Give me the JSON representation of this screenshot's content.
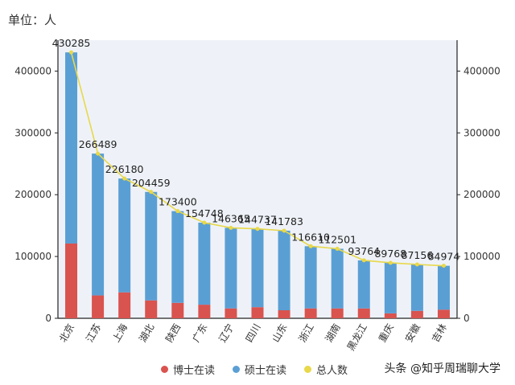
{
  "unit_label": "单位：人",
  "watermark": "头条 @知乎周瑞聊大学",
  "chart_data": {
    "type": "bar",
    "stacked": true,
    "categories": [
      "北京",
      "江苏",
      "上海",
      "湖北",
      "陕西",
      "广东",
      "辽宁",
      "四川",
      "山东",
      "浙江",
      "湖南",
      "黑龙江",
      "重庆",
      "安徽",
      "吉林"
    ],
    "series": [
      {
        "name": "博士在读",
        "color": "#d9534f",
        "values": [
          121000,
          37000,
          42000,
          29000,
          25000,
          22000,
          16000,
          18000,
          13000,
          16000,
          16000,
          16000,
          8000,
          12000,
          14000
        ]
      },
      {
        "name": "硕士在读",
        "color": "#5a9fd4",
        "values": [
          309285,
          229489,
          184180,
          175459,
          148400,
          132748,
          130365,
          126737,
          128783,
          100610,
          96501,
          77764,
          81768,
          75156,
          70974
        ]
      }
    ],
    "line": {
      "name": "总人数",
      "color": "#e8d84a",
      "values": [
        430285,
        266489,
        226180,
        204459,
        173400,
        154748,
        146365,
        144737,
        141783,
        116610,
        112501,
        93764,
        89768,
        87156,
        84974
      ]
    },
    "ylim": [
      0,
      450000
    ],
    "yticks": [
      0,
      100000,
      200000,
      300000,
      400000
    ],
    "legend_position": "bottom",
    "grid": false
  }
}
